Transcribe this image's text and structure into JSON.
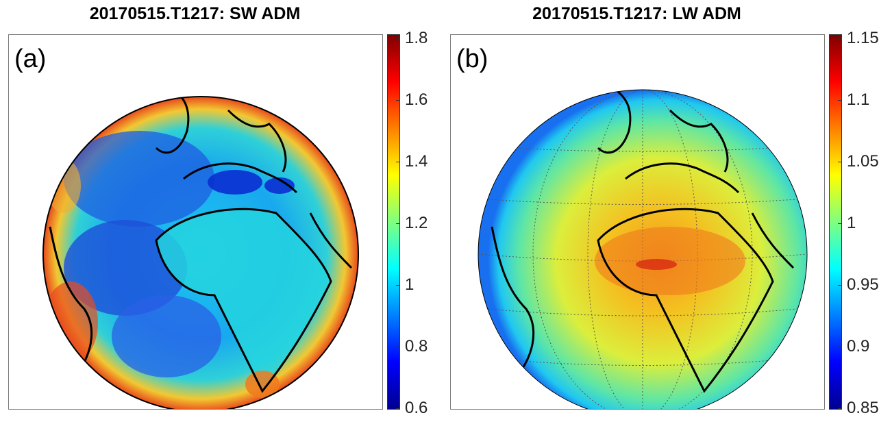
{
  "panels": [
    {
      "title": "20170515.T1217: SW ADM",
      "label": "(a)",
      "colorbar": {
        "ticks": [
          "1.8",
          "1.6",
          "1.4",
          "1.2",
          "1",
          "0.8",
          "0.6"
        ],
        "min": 0.6,
        "max": 1.8
      }
    },
    {
      "title": "20170515.T1217: LW ADM",
      "label": "(b)",
      "colorbar": {
        "ticks": [
          "1.15",
          "1.1",
          "1.05",
          "1",
          "0.95",
          "0.9",
          "0.85"
        ],
        "min": 0.85,
        "max": 1.15
      }
    }
  ],
  "colormap": "jet",
  "colors": {
    "jet": [
      "#00008f",
      "#0000ff",
      "#0080ff",
      "#00ffff",
      "#80ff80",
      "#ffff00",
      "#ff8000",
      "#ff0000",
      "#800000"
    ],
    "coastline": "#000000",
    "graticule": "#555555"
  }
}
